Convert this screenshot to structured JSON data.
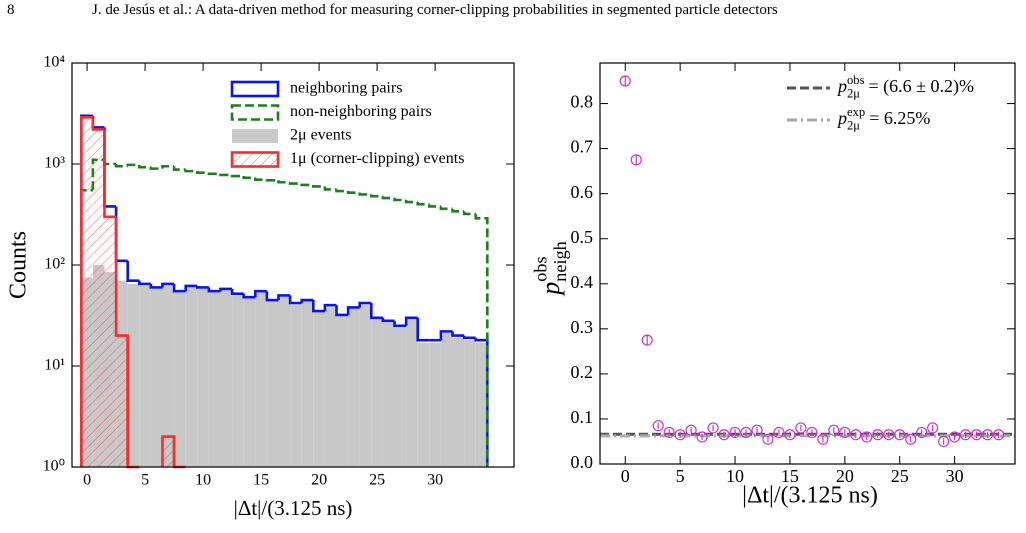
{
  "header": {
    "page_number": "8",
    "running_title": "J. de Jesús et al.: A data-driven method for measuring corner-clipping probabilities in segmented particle detectors"
  },
  "chart_data": [
    {
      "type": "histogram",
      "xlabel": "|Δt|/(3.125 ns)",
      "ylabel": "Counts",
      "log_y": true,
      "xlim": [
        -1.3,
        36.8
      ],
      "ylim": [
        1,
        10000
      ],
      "xticks": [
        0,
        5,
        10,
        15,
        20,
        25,
        30
      ],
      "yticks": [
        {
          "value": 1,
          "label": "10⁰"
        },
        {
          "value": 10,
          "label": "10¹"
        },
        {
          "value": 100,
          "label": "10²"
        },
        {
          "value": 1000,
          "label": "10³"
        },
        {
          "value": 10000,
          "label": "10⁴"
        }
      ],
      "bins": [
        -0.5,
        0.5,
        1.5,
        2.5,
        3.5,
        4.5,
        5.5,
        6.5,
        7.5,
        8.5,
        9.5,
        10.5,
        11.5,
        12.5,
        13.5,
        14.5,
        15.5,
        16.5,
        17.5,
        18.5,
        19.5,
        20.5,
        21.5,
        22.5,
        23.5,
        24.5,
        25.5,
        26.5,
        27.5,
        28.5,
        29.5,
        30.5,
        31.5,
        32.5,
        33.5,
        34.5
      ],
      "series": [
        {
          "name": "neighboring pairs",
          "color": "#0a14f0",
          "style": "step",
          "values": [
            3000,
            2300,
            380,
            110,
            70,
            65,
            60,
            65,
            55,
            62,
            60,
            55,
            58,
            52,
            48,
            55,
            45,
            50,
            42,
            45,
            35,
            40,
            32,
            38,
            42,
            30,
            28,
            25,
            30,
            18,
            18,
            22,
            20,
            19,
            18
          ]
        },
        {
          "name": "non-neighboring pairs",
          "color": "#1f7f1f",
          "style": "dashed",
          "values": [
            550,
            1100,
            1000,
            950,
            980,
            930,
            900,
            950,
            880,
            850,
            820,
            800,
            780,
            760,
            730,
            700,
            690,
            660,
            640,
            620,
            600,
            560,
            540,
            520,
            500,
            480,
            460,
            440,
            420,
            400,
            380,
            360,
            340,
            320,
            290
          ]
        },
        {
          "name": "2μ events",
          "color": "#c8c8c8",
          "style": "filled",
          "values": [
            75,
            100,
            85,
            70,
            65,
            62,
            58,
            62,
            53,
            60,
            58,
            53,
            56,
            50,
            47,
            53,
            44,
            48,
            40,
            44,
            34,
            38,
            31,
            37,
            40,
            29,
            27,
            24,
            29,
            17,
            17,
            21,
            19,
            18,
            17
          ]
        },
        {
          "name": "1μ (corner-clipping) events",
          "color": "#ff2a2a",
          "style": "hatched",
          "values": [
            2900,
            2200,
            300,
            20,
            0,
            1,
            1,
            2,
            0,
            0,
            0,
            0,
            0,
            0,
            0,
            0,
            0,
            0,
            0,
            0,
            0,
            0,
            0,
            0,
            0,
            0,
            0,
            0,
            0,
            0,
            0,
            0,
            0,
            0,
            0
          ]
        }
      ]
    },
    {
      "type": "scatter",
      "xlabel": "|Δt|/(3.125 ns)",
      "ylabel": {
        "symbol": "p",
        "sup": "obs",
        "sub": "neigh"
      },
      "xlim": [
        -2.3,
        35.5
      ],
      "ylim": [
        0,
        0.89
      ],
      "xticks": [
        0,
        5,
        10,
        15,
        20,
        25,
        30
      ],
      "yticks": [
        {
          "value": 0,
          "label": "0.0"
        },
        0.1,
        0.2,
        0.3,
        0.4,
        0.5,
        0.6,
        0.7,
        0.8
      ],
      "x": [
        0,
        1,
        2,
        3,
        4,
        5,
        6,
        7,
        8,
        9,
        10,
        11,
        12,
        13,
        14,
        15,
        16,
        17,
        18,
        19,
        20,
        21,
        22,
        23,
        24,
        25,
        26,
        27,
        28,
        29,
        30,
        31,
        32,
        33,
        34
      ],
      "series": [
        {
          "color": "#cc33cc",
          "values": [
            0.85,
            0.675,
            0.275,
            0.085,
            0.07,
            0.065,
            0.075,
            0.06,
            0.08,
            0.065,
            0.07,
            0.07,
            0.075,
            0.055,
            0.07,
            0.065,
            0.08,
            0.07,
            0.055,
            0.075,
            0.07,
            0.065,
            0.06,
            0.065,
            0.065,
            0.065,
            0.055,
            0.07,
            0.08,
            0.05,
            0.06,
            0.065,
            0.065,
            0.065,
            0.065
          ],
          "errors": [
            0.01,
            0.012,
            0.012,
            0.007,
            0.007,
            0.007,
            0.007,
            0.007,
            0.007,
            0.007,
            0.007,
            0.007,
            0.007,
            0.007,
            0.007,
            0.007,
            0.007,
            0.007,
            0.007,
            0.007,
            0.007,
            0.007,
            0.007,
            0.007,
            0.007,
            0.007,
            0.007,
            0.007,
            0.007,
            0.007,
            0.007,
            0.007,
            0.007,
            0.007,
            0.007
          ]
        }
      ],
      "reference_lines": [
        {
          "value": 0.066,
          "color": "#555555",
          "dash": "dashed",
          "symbol": "p",
          "sup": "obs",
          "sub": "2μ",
          "text": "= (6.6 ± 0.2)%"
        },
        {
          "value": 0.0625,
          "color": "#aaaaaa",
          "dash": "dashdot",
          "symbol": "p",
          "sup": "exp",
          "sub": "2μ",
          "text": "= 6.25%"
        }
      ]
    }
  ]
}
